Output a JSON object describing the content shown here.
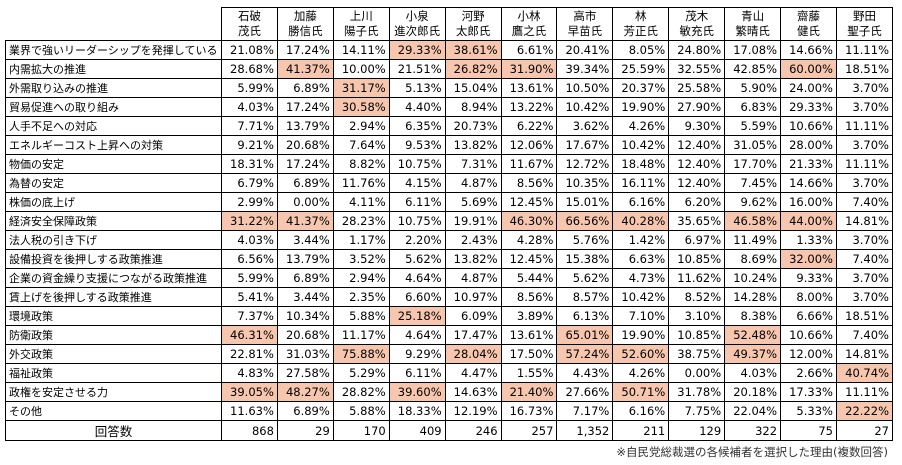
{
  "table": {
    "columns": [
      [
        "石破",
        "茂氏"
      ],
      [
        "加藤",
        "勝信氏"
      ],
      [
        "上川",
        "陽子氏"
      ],
      [
        "小泉",
        "進次郎氏"
      ],
      [
        "河野",
        "太郎氏"
      ],
      [
        "小林",
        "鷹之氏"
      ],
      [
        "高市",
        "早苗氏"
      ],
      [
        "林",
        "芳正氏"
      ],
      [
        "茂木",
        "敏充氏"
      ],
      [
        "青山",
        "繁晴氏"
      ],
      [
        "齋藤",
        "健氏"
      ],
      [
        "野田",
        "聖子氏"
      ]
    ],
    "rows": [
      {
        "label": "業界で強いリーダーシップを発揮している",
        "cells": [
          "21.08%",
          "17.24%",
          "14.11%",
          "29.33%",
          "38.61%",
          "6.61%",
          "20.41%",
          "8.05%",
          "24.80%",
          "17.08%",
          "14.66%",
          "11.11%"
        ],
        "highlight": [
          3,
          4
        ]
      },
      {
        "label": "内需拡大の推進",
        "cells": [
          "28.68%",
          "41.37%",
          "10.00%",
          "21.51%",
          "26.82%",
          "31.90%",
          "39.34%",
          "25.59%",
          "32.55%",
          "42.85%",
          "60.00%",
          "18.51%"
        ],
        "highlight": [
          1,
          4,
          5,
          10
        ]
      },
      {
        "label": "外需取り込みの推進",
        "cells": [
          "5.99%",
          "6.89%",
          "31.17%",
          "5.13%",
          "15.04%",
          "13.61%",
          "10.50%",
          "20.37%",
          "25.58%",
          "5.90%",
          "24.00%",
          "3.70%"
        ],
        "highlight": [
          2
        ]
      },
      {
        "label": "貿易促進への取り組み",
        "cells": [
          "4.03%",
          "17.24%",
          "30.58%",
          "4.40%",
          "8.94%",
          "13.22%",
          "10.42%",
          "19.90%",
          "27.90%",
          "6.83%",
          "29.33%",
          "3.70%"
        ],
        "highlight": [
          2
        ]
      },
      {
        "label": "人手不足への対応",
        "cells": [
          "7.71%",
          "13.79%",
          "2.94%",
          "6.35%",
          "20.73%",
          "6.22%",
          "3.62%",
          "4.26%",
          "9.30%",
          "5.59%",
          "10.66%",
          "11.11%"
        ],
        "highlight": []
      },
      {
        "label": "エネルギーコスト上昇への対策",
        "cells": [
          "9.21%",
          "20.68%",
          "7.64%",
          "9.53%",
          "13.82%",
          "12.06%",
          "17.67%",
          "10.42%",
          "12.40%",
          "31.05%",
          "28.00%",
          "3.70%"
        ],
        "highlight": []
      },
      {
        "label": "物価の安定",
        "cells": [
          "18.31%",
          "17.24%",
          "8.82%",
          "10.75%",
          "7.31%",
          "11.67%",
          "12.72%",
          "18.48%",
          "12.40%",
          "17.70%",
          "21.33%",
          "11.11%"
        ],
        "highlight": []
      },
      {
        "label": "為替の安定",
        "cells": [
          "6.79%",
          "6.89%",
          "11.76%",
          "4.15%",
          "4.87%",
          "8.56%",
          "10.35%",
          "16.11%",
          "12.40%",
          "7.45%",
          "14.66%",
          "3.70%"
        ],
        "highlight": []
      },
      {
        "label": "株価の底上げ",
        "cells": [
          "2.99%",
          "0.00%",
          "4.11%",
          "6.11%",
          "5.69%",
          "12.45%",
          "15.01%",
          "6.16%",
          "6.20%",
          "9.62%",
          "16.00%",
          "7.40%"
        ],
        "highlight": []
      },
      {
        "label": "経済安全保障政策",
        "cells": [
          "31.22%",
          "41.37%",
          "28.23%",
          "10.75%",
          "19.91%",
          "46.30%",
          "66.56%",
          "40.28%",
          "35.65%",
          "46.58%",
          "44.00%",
          "14.81%"
        ],
        "highlight": [
          0,
          1,
          5,
          6,
          7,
          9,
          10
        ]
      },
      {
        "label": "法人税の引き下げ",
        "cells": [
          "4.03%",
          "3.44%",
          "1.17%",
          "2.20%",
          "2.43%",
          "4.28%",
          "5.76%",
          "1.42%",
          "6.97%",
          "11.49%",
          "1.33%",
          "3.70%"
        ],
        "highlight": []
      },
      {
        "label": "設備投資を後押しする政策推進",
        "cells": [
          "6.56%",
          "13.79%",
          "3.52%",
          "5.62%",
          "13.82%",
          "12.45%",
          "15.38%",
          "6.63%",
          "10.85%",
          "8.69%",
          "32.00%",
          "7.40%"
        ],
        "highlight": [
          10
        ]
      },
      {
        "label": "企業の資金繰り支援につながる政策推進",
        "cells": [
          "5.99%",
          "6.89%",
          "2.94%",
          "4.64%",
          "4.87%",
          "5.44%",
          "5.62%",
          "4.73%",
          "11.62%",
          "10.24%",
          "9.33%",
          "3.70%"
        ],
        "highlight": []
      },
      {
        "label": "賃上げを後押しする政策推進",
        "cells": [
          "5.41%",
          "3.44%",
          "2.35%",
          "6.60%",
          "10.97%",
          "8.56%",
          "8.57%",
          "10.42%",
          "8.52%",
          "14.28%",
          "8.00%",
          "3.70%"
        ],
        "highlight": []
      },
      {
        "label": "環境政策",
        "cells": [
          "7.37%",
          "10.34%",
          "5.88%",
          "25.18%",
          "6.09%",
          "3.89%",
          "6.13%",
          "7.10%",
          "3.10%",
          "8.38%",
          "6.66%",
          "18.51%"
        ],
        "highlight": [
          3
        ]
      },
      {
        "label": "防衛政策",
        "cells": [
          "46.31%",
          "20.68%",
          "11.17%",
          "4.64%",
          "17.47%",
          "13.61%",
          "65.01%",
          "19.90%",
          "10.85%",
          "52.48%",
          "10.66%",
          "7.40%"
        ],
        "highlight": [
          0,
          6,
          9
        ]
      },
      {
        "label": "外交政策",
        "cells": [
          "22.81%",
          "31.03%",
          "75.88%",
          "9.29%",
          "28.04%",
          "17.50%",
          "57.24%",
          "52.60%",
          "38.75%",
          "49.37%",
          "12.00%",
          "14.81%"
        ],
        "highlight": [
          2,
          4,
          6,
          7,
          9
        ]
      },
      {
        "label": "福祉政策",
        "cells": [
          "4.83%",
          "27.58%",
          "5.29%",
          "6.11%",
          "4.47%",
          "1.55%",
          "4.43%",
          "4.26%",
          "0.00%",
          "4.03%",
          "2.66%",
          "40.74%"
        ],
        "highlight": [
          11
        ]
      },
      {
        "label": "政権を安定させる力",
        "cells": [
          "39.05%",
          "48.27%",
          "28.82%",
          "39.60%",
          "14.63%",
          "21.40%",
          "27.66%",
          "50.71%",
          "31.78%",
          "20.18%",
          "17.33%",
          "11.11%"
        ],
        "highlight": [
          0,
          1,
          3,
          5,
          7
        ]
      },
      {
        "label": "その他",
        "cells": [
          "11.63%",
          "6.89%",
          "5.88%",
          "18.33%",
          "12.19%",
          "16.73%",
          "7.17%",
          "6.16%",
          "7.75%",
          "22.04%",
          "5.33%",
          "22.22%"
        ],
        "highlight": [
          11
        ]
      }
    ],
    "total": {
      "label": "回答数",
      "cells": [
        "868",
        "29",
        "170",
        "409",
        "246",
        "257",
        "1,352",
        "211",
        "129",
        "322",
        "75",
        "27"
      ]
    },
    "note": "※自民党総裁選の各候補者を選択した理由(複数回答)"
  }
}
